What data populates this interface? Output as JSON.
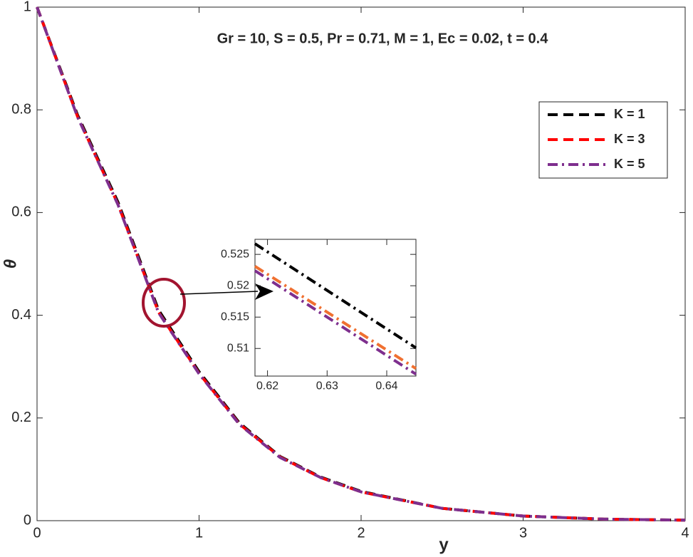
{
  "chart_data": [
    {
      "type": "line",
      "annotation": "Gr = 10, S = 0.5, Pr = 0.71, M = 1,  Ec = 0.02, t = 0.4",
      "xlabel": "y",
      "ylabel": "θ",
      "x": [
        0,
        0.25,
        0.5,
        0.75,
        1,
        1.25,
        1.5,
        1.75,
        2,
        2.5,
        3,
        3.5,
        4
      ],
      "series": [
        {
          "name": "K = 1",
          "color": "#000000",
          "style": "dashed",
          "values": [
            1,
            0.79,
            0.62,
            0.41,
            0.29,
            0.19,
            0.125,
            0.085,
            0.057,
            0.024,
            0.009,
            0.003,
            0.001
          ]
        },
        {
          "name": "K = 3",
          "color": "#ff0000",
          "style": "dashed",
          "values": [
            1,
            0.787,
            0.616,
            0.406,
            0.287,
            0.188,
            0.124,
            0.084,
            0.056,
            0.024,
            0.009,
            0.003,
            0.001
          ]
        },
        {
          "name": "K = 5",
          "color": "#7e2f8e",
          "style": "dashdot",
          "values": [
            1,
            0.786,
            0.615,
            0.405,
            0.286,
            0.187,
            0.123,
            0.084,
            0.056,
            0.024,
            0.009,
            0.003,
            0.001
          ]
        }
      ],
      "xlim": [
        0,
        4
      ],
      "ylim": [
        0,
        1
      ],
      "xticks": [
        0,
        1,
        2,
        3,
        4
      ],
      "yticks": [
        0,
        0.2,
        0.4,
        0.6,
        0.8,
        1
      ],
      "legend": "northeast"
    },
    {
      "type": "line",
      "x": [
        0.6179,
        0.6449
      ],
      "series": [
        {
          "color": "#000000",
          "style": "dashdot",
          "values": [
            0.5267,
            0.5101
          ]
        },
        {
          "color": "#f07030",
          "style": "dashdot",
          "values": [
            0.5231,
            0.5068
          ]
        },
        {
          "color": "#7e2f8e",
          "style": "dashdot",
          "values": [
            0.5224,
            0.5059
          ]
        }
      ],
      "xlim": [
        0.6179,
        0.6449
      ],
      "ylim": [
        0.5056,
        0.5274
      ],
      "xticks": [
        0.62,
        0.63,
        0.64
      ],
      "yticks": [
        0.51,
        0.515,
        0.52,
        0.525
      ]
    }
  ]
}
